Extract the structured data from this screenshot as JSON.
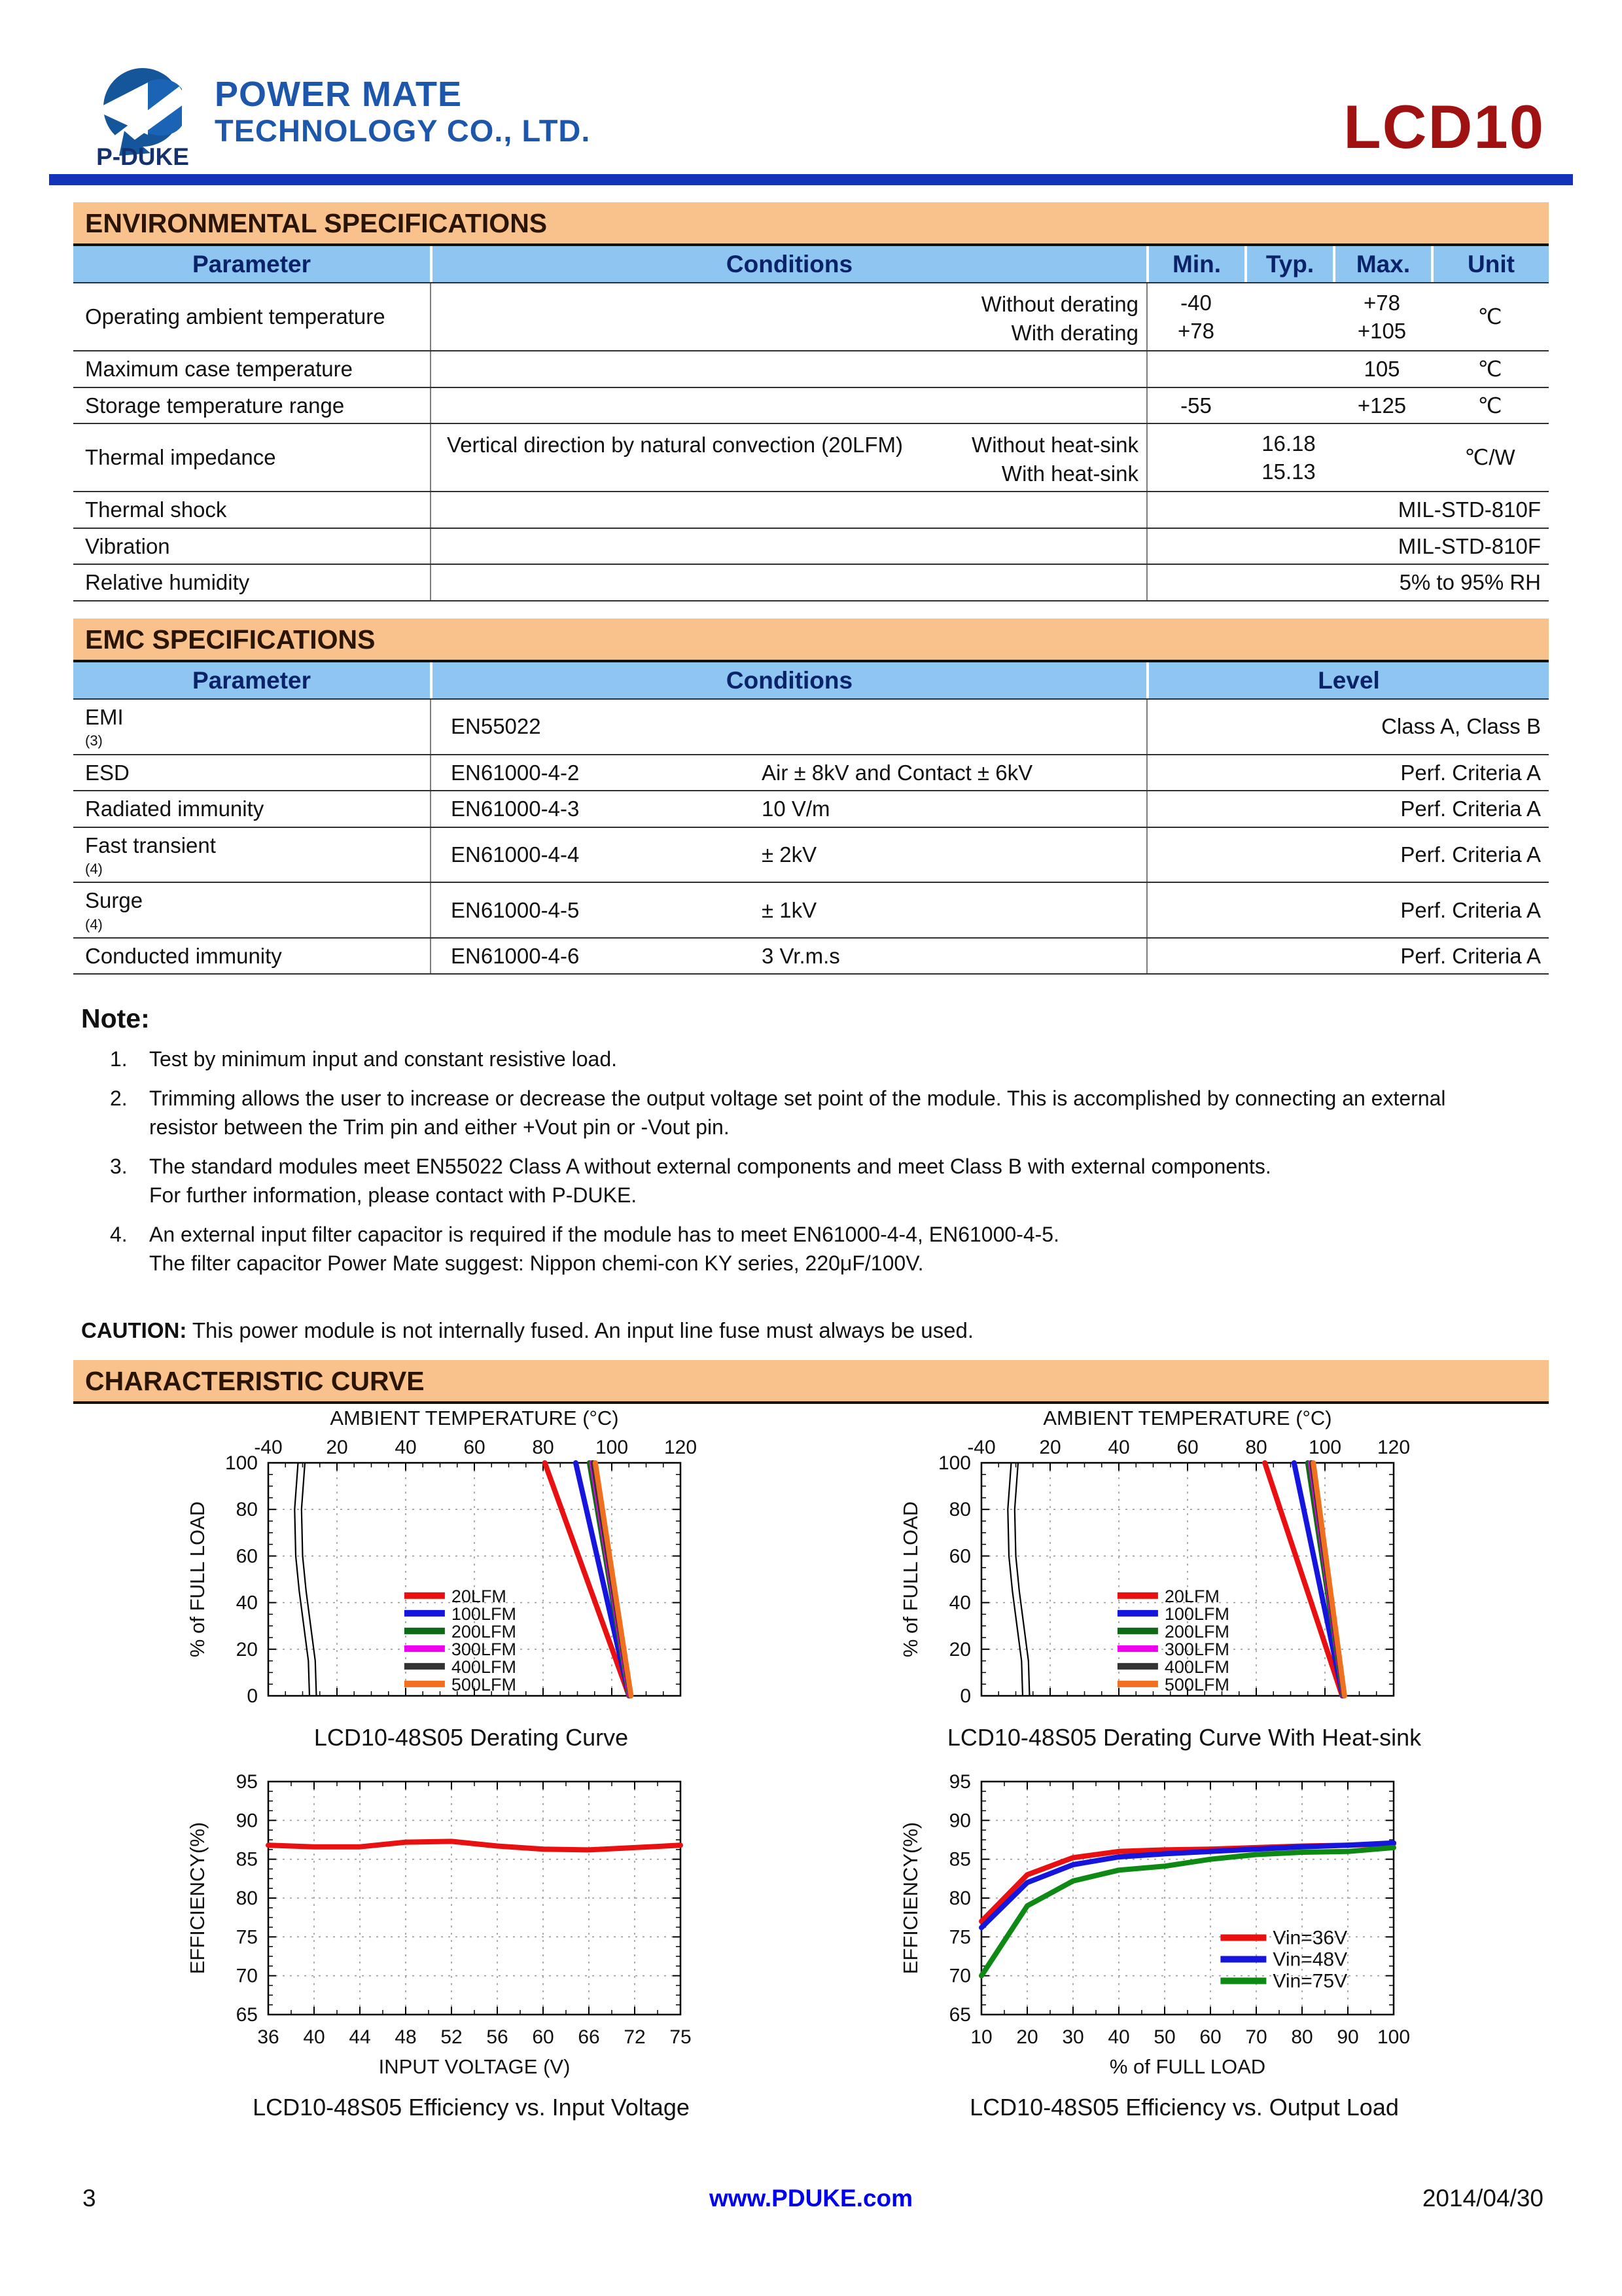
{
  "header": {
    "company_line1": "POWER MATE",
    "company_line2": "TECHNOLOGY CO., LTD.",
    "logo_text": "P-DUKE",
    "product": "LCD10",
    "colors": {
      "company_blue": "#1d57ac",
      "logo_blue": "#15559a",
      "product_red": "#a01212",
      "rule_blue": "#1433bb"
    }
  },
  "env_section": {
    "title": "ENVIRONMENTAL SPECIFICATIONS",
    "columns": [
      "Parameter",
      "Conditions",
      "Min.",
      "Typ.",
      "Max.",
      "Unit"
    ],
    "rows": [
      {
        "param": "Operating ambient temperature",
        "cond_right": [
          "Without derating",
          "With derating"
        ],
        "min": [
          "-40",
          "+78"
        ],
        "typ": [],
        "max": [
          "+78",
          "+105"
        ],
        "unit": "℃"
      },
      {
        "param": "Maximum case temperature",
        "min": [],
        "typ": [],
        "max": [
          "105"
        ],
        "unit": "℃"
      },
      {
        "param": "Storage temperature range",
        "min": [
          "-55"
        ],
        "typ": [],
        "max": [
          "+125"
        ],
        "unit": "℃"
      },
      {
        "param": "Thermal impedance",
        "cond_left": "Vertical direction by natural convection (20LFM)",
        "cond_right": [
          "Without heat-sink",
          "With heat-sink"
        ],
        "min": [],
        "typ": [
          "16.18",
          "15.13"
        ],
        "max": [],
        "unit": "℃/W"
      },
      {
        "param": "Thermal shock",
        "span_value": "MIL-STD-810F"
      },
      {
        "param": "Vibration",
        "span_value": "MIL-STD-810F"
      },
      {
        "param": "Relative humidity",
        "span_value": "5% to 95% RH"
      }
    ]
  },
  "emc_section": {
    "title": "EMC SPECIFICATIONS",
    "columns": [
      "Parameter",
      "Conditions",
      "Level"
    ],
    "rows": [
      {
        "param": "EMI",
        "sup": "(3)",
        "std": "EN55022",
        "detail": "",
        "level": "Class A, Class B"
      },
      {
        "param": "ESD",
        "sup": "",
        "std": "EN61000-4-2",
        "detail": "Air ± 8kV and Contact ± 6kV",
        "level": "Perf. Criteria A"
      },
      {
        "param": "Radiated immunity",
        "sup": "",
        "std": "EN61000-4-3",
        "detail": "10 V/m",
        "level": "Perf. Criteria A"
      },
      {
        "param": "Fast transient",
        "sup": "(4)",
        "std": "EN61000-4-4",
        "detail": "± 2kV",
        "level": "Perf. Criteria A"
      },
      {
        "param": "Surge",
        "sup": "(4)",
        "std": "EN61000-4-5",
        "detail": "± 1kV",
        "level": "Perf. Criteria A"
      },
      {
        "param": "Conducted immunity",
        "sup": "",
        "std": "EN61000-4-6",
        "detail": "3 Vr.m.s",
        "level": "Perf. Criteria A"
      }
    ]
  },
  "note": {
    "title": "Note:",
    "items": [
      {
        "num": "1.",
        "lines": [
          "Test by minimum input and constant resistive load."
        ]
      },
      {
        "num": "2.",
        "lines": [
          "Trimming allows the user to increase or decrease the output voltage set point of the module. This is accomplished by connecting an external",
          "resistor between the Trim pin and either +Vout pin or -Vout pin."
        ]
      },
      {
        "num": "3.",
        "lines": [
          "The standard modules meet EN55022 Class A without external components and meet Class B with external components.",
          "For further information, please contact with P-DUKE."
        ]
      },
      {
        "num": "4.",
        "lines": [
          "An external input filter capacitor is required if the module has to meet EN61000-4-4, EN61000-4-5.",
          "The filter capacitor Power Mate suggest: Nippon chemi-con KY series, 220μF/100V."
        ]
      }
    ]
  },
  "caution": {
    "label": "CAUTION:",
    "text": "This power module is not internally fused. An input line fuse must always be used."
  },
  "curves_section": {
    "title": "CHARACTERISTIC CURVE"
  },
  "chart_data": [
    {
      "type": "line",
      "caption": "LCD10-48S05 Derating Curve",
      "xlabel": "AMBIENT TEMPERATURE (°C)",
      "xlabel_position": "top",
      "ylabel": "% of FULL LOAD",
      "x_ticks": [
        -40,
        20,
        40,
        60,
        80,
        100,
        120
      ],
      "ylim": [
        0,
        100
      ],
      "y_ticks": [
        0,
        20,
        40,
        60,
        80,
        100
      ],
      "grid": true,
      "legend_position": "inside-left-bottom",
      "series": [
        {
          "name": "20LFM",
          "color": "#e81010",
          "points": [
            [
              80.5,
              100
            ],
            [
              105,
              0
            ]
          ]
        },
        {
          "name": "100LFM",
          "color": "#1515dd",
          "points": [
            [
              89.5,
              100
            ],
            [
              105,
              0
            ]
          ]
        },
        {
          "name": "200LFM",
          "color": "#0e6a14",
          "points": [
            [
              93.5,
              100
            ],
            [
              105,
              0
            ]
          ]
        },
        {
          "name": "300LFM",
          "color": "#ee00ee",
          "points": [
            [
              94.2,
              100
            ],
            [
              105.2,
              0
            ]
          ]
        },
        {
          "name": "400LFM",
          "color": "#333333",
          "points": [
            [
              94.6,
              100
            ],
            [
              105.4,
              0
            ]
          ]
        },
        {
          "name": "500LFM",
          "color": "#f07020",
          "points": [
            [
              95.2,
              100
            ],
            [
              105.6,
              0
            ]
          ]
        }
      ],
      "boundary": [
        [
          [
            -14,
            100
          ],
          [
            -17,
            80
          ],
          [
            -16,
            60
          ],
          [
            -13,
            45
          ],
          [
            -9,
            30
          ],
          [
            -5,
            15
          ],
          [
            -4,
            0
          ]
        ],
        [
          [
            -8,
            100
          ],
          [
            -11,
            80
          ],
          [
            -10,
            60
          ],
          [
            -7,
            45
          ],
          [
            -3,
            30
          ],
          [
            1,
            15
          ],
          [
            2,
            0
          ]
        ]
      ]
    },
    {
      "type": "line",
      "caption": "LCD10-48S05 Derating Curve With Heat-sink",
      "xlabel": "AMBIENT TEMPERATURE (°C)",
      "xlabel_position": "top",
      "ylabel": "% of FULL LOAD",
      "x_ticks": [
        -40,
        20,
        40,
        60,
        80,
        100,
        120
      ],
      "ylim": [
        0,
        100
      ],
      "y_ticks": [
        0,
        20,
        40,
        60,
        80,
        100
      ],
      "grid": true,
      "legend_position": "inside-left-bottom",
      "series": [
        {
          "name": "20LFM",
          "color": "#e81010",
          "points": [
            [
              82.5,
              100
            ],
            [
              105,
              0
            ]
          ]
        },
        {
          "name": "100LFM",
          "color": "#1515dd",
          "points": [
            [
              91,
              100
            ],
            [
              105.2,
              0
            ]
          ]
        },
        {
          "name": "200LFM",
          "color": "#0e6a14",
          "points": [
            [
              95,
              100
            ],
            [
              105.3,
              0
            ]
          ]
        },
        {
          "name": "300LFM",
          "color": "#ee00ee",
          "points": [
            [
              95.8,
              100
            ],
            [
              105.4,
              0
            ]
          ]
        },
        {
          "name": "400LFM",
          "color": "#333333",
          "points": [
            [
              96.2,
              100
            ],
            [
              105.5,
              0
            ]
          ]
        },
        {
          "name": "500LFM",
          "color": "#f07020",
          "points": [
            [
              96.6,
              100
            ],
            [
              105.7,
              0
            ]
          ]
        }
      ],
      "boundary": [
        [
          [
            -14,
            100
          ],
          [
            -17,
            80
          ],
          [
            -16,
            60
          ],
          [
            -13,
            45
          ],
          [
            -9,
            30
          ],
          [
            -5,
            15
          ],
          [
            -4,
            0
          ]
        ],
        [
          [
            -8,
            100
          ],
          [
            -11,
            80
          ],
          [
            -10,
            60
          ],
          [
            -7,
            45
          ],
          [
            -3,
            30
          ],
          [
            1,
            15
          ],
          [
            2,
            0
          ]
        ]
      ]
    },
    {
      "type": "line",
      "caption": "LCD10-48S05 Efficiency vs. Input Voltage",
      "xlabel": "INPUT VOLTAGE (V)",
      "xlabel_position": "bottom",
      "ylabel": "EFFICIENCY(%)",
      "x_ticks": [
        36,
        40,
        44,
        48,
        52,
        56,
        60,
        66,
        72,
        75
      ],
      "x_categorical": true,
      "ylim": [
        65,
        95
      ],
      "y_ticks": [
        65,
        70,
        75,
        80,
        85,
        90,
        95
      ],
      "grid": true,
      "series": [
        {
          "name": "",
          "color": "#e81010",
          "values": [
            86.8,
            86.6,
            86.6,
            87.2,
            87.3,
            86.7,
            86.3,
            86.2,
            86.5,
            86.8
          ]
        }
      ]
    },
    {
      "type": "line",
      "caption": "LCD10-48S05 Efficiency vs. Output Load",
      "xlabel": "% of FULL LOAD",
      "xlabel_position": "bottom",
      "ylabel": "EFFICIENCY(%)",
      "x_ticks": [
        10,
        20,
        30,
        40,
        50,
        60,
        70,
        80,
        90,
        100
      ],
      "x_categorical": true,
      "ylim": [
        65,
        95
      ],
      "y_ticks": [
        65,
        70,
        75,
        80,
        85,
        90,
        95
      ],
      "grid": true,
      "legend_position": "inside-right-bottom",
      "series": [
        {
          "name": "Vin=36V",
          "color": "#e81010",
          "values": [
            77,
            83,
            85.2,
            86,
            86.2,
            86.3,
            86.5,
            86.7,
            86.8,
            87
          ]
        },
        {
          "name": "Vin=48V",
          "color": "#1515dd",
          "values": [
            76.2,
            82,
            84.3,
            85.3,
            85.7,
            86,
            86.3,
            86.6,
            86.8,
            87.1
          ]
        },
        {
          "name": "Vin=75V",
          "color": "#0e8a14",
          "values": [
            70,
            79,
            82.2,
            83.6,
            84.1,
            85,
            85.6,
            85.9,
            86,
            86.5
          ]
        }
      ]
    }
  ],
  "footer": {
    "page": "3",
    "site": "www.PDUKE.com",
    "date": "2014/04/30"
  }
}
